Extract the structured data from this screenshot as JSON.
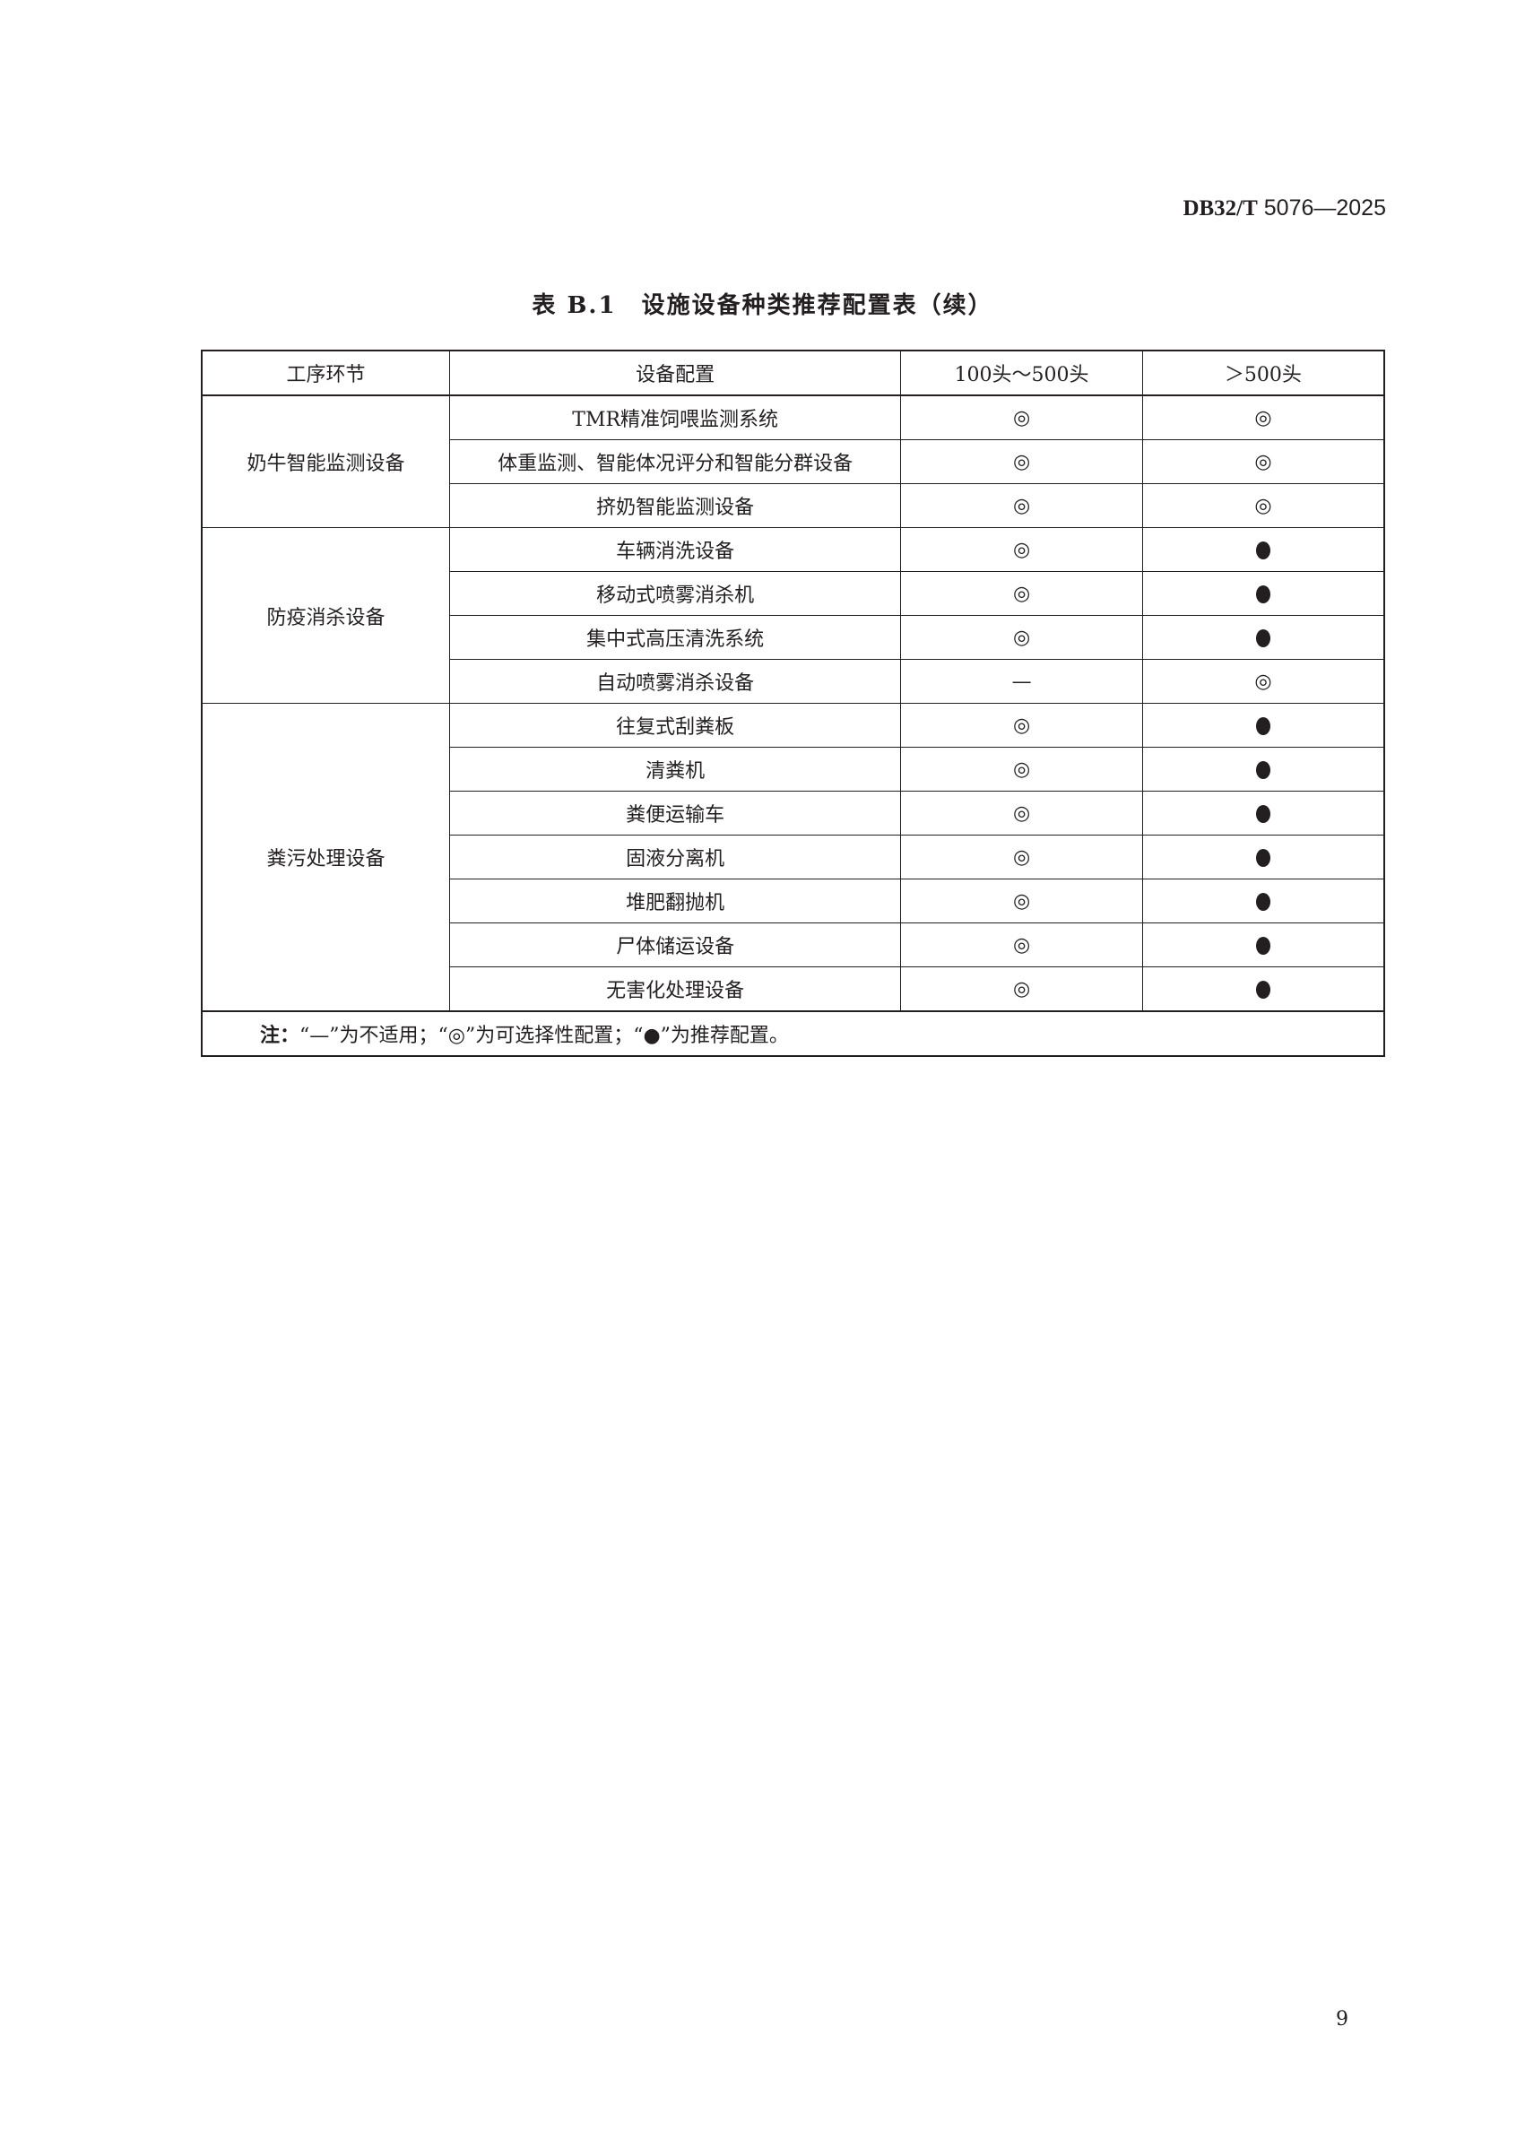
{
  "header": {
    "code_bold": "DB32/T",
    "code_rest": " 5076—2025"
  },
  "title": "表 B.1　设施设备种类推荐配置表（续）",
  "table": {
    "columns": [
      "工序环节",
      "设备配置",
      "100头～500头",
      "＞500头"
    ],
    "groups": [
      {
        "name": "奶牛智能监测设备",
        "rows": [
          {
            "item": "TMR精准饲喂监测系统",
            "small": "◎",
            "large": "◎"
          },
          {
            "item": "体重监测、智能体况评分和智能分群设备",
            "small": "◎",
            "large": "◎"
          },
          {
            "item": "挤奶智能监测设备",
            "small": "◎",
            "large": "◎"
          }
        ]
      },
      {
        "name": "防疫消杀设备",
        "rows": [
          {
            "item": "车辆消洗设备",
            "small": "◎",
            "large": "●"
          },
          {
            "item": "移动式喷雾消杀机",
            "small": "◎",
            "large": "●"
          },
          {
            "item": "集中式高压清洗系统",
            "small": "◎",
            "large": "●"
          },
          {
            "item": "自动喷雾消杀设备",
            "small": "—",
            "large": "◎"
          }
        ]
      },
      {
        "name": "粪污处理设备",
        "rows": [
          {
            "item": "往复式刮粪板",
            "small": "◎",
            "large": "●"
          },
          {
            "item": "清粪机",
            "small": "◎",
            "large": "●"
          },
          {
            "item": "粪便运输车",
            "small": "◎",
            "large": "●"
          },
          {
            "item": "固液分离机",
            "small": "◎",
            "large": "●"
          },
          {
            "item": "堆肥翻抛机",
            "small": "◎",
            "large": "●"
          },
          {
            "item": "尸体储运设备",
            "small": "◎",
            "large": "●"
          },
          {
            "item": "无害化处理设备",
            "small": "◎",
            "large": "●"
          }
        ]
      }
    ],
    "note_label": "注：",
    "note": "“—”为不适用；“◎”为可选择性配置；“●”为推荐配置。"
  },
  "page_number": "9"
}
